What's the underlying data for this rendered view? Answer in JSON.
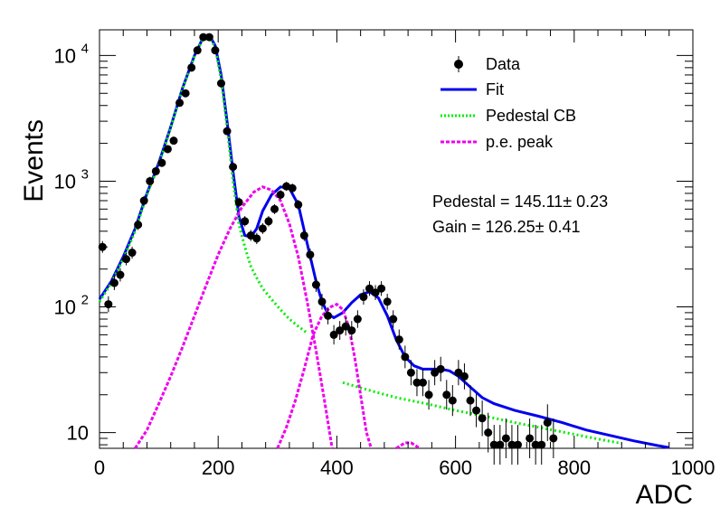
{
  "chart_data": {
    "type": "scatter",
    "xlabel": "ADC",
    "ylabel": "Events",
    "xlim": [
      0,
      1000
    ],
    "ylim": [
      7.5,
      16000
    ],
    "yscale": "log",
    "x_ticks": [
      "0",
      "200",
      "400",
      "600",
      "800",
      "1000"
    ],
    "y_ticks": [
      {
        "value": 10,
        "label": "10"
      },
      {
        "value": 100,
        "label": "10",
        "exponent": "2"
      },
      {
        "value": 1000,
        "label": "10",
        "exponent": "3"
      },
      {
        "value": 10000,
        "label": "10",
        "exponent": "4"
      }
    ],
    "grid": false,
    "legend_position": "top-right",
    "legend": [
      {
        "label": "Data",
        "style": "marker",
        "color": "#000000"
      },
      {
        "label": "Fit",
        "style": "solid",
        "color": "#0000ee"
      },
      {
        "label": "Pedestal CB",
        "style": "dotted",
        "color": "#00ee00"
      },
      {
        "label": "p.e. peak",
        "style": "dashed",
        "color": "#ee00ee"
      }
    ],
    "annotations": [
      {
        "text": "Pedestal = 145.11± 0.23"
      },
      {
        "text": "Gain = 126.25± 0.41"
      }
    ],
    "series": [
      {
        "name": "Data",
        "kind": "points",
        "color": "#000000",
        "points": [
          [
            5,
            300
          ],
          [
            15,
            105
          ],
          [
            25,
            155
          ],
          [
            35,
            180
          ],
          [
            45,
            240
          ],
          [
            55,
            270
          ],
          [
            65,
            450
          ],
          [
            75,
            700
          ],
          [
            85,
            1000
          ],
          [
            95,
            1200
          ],
          [
            105,
            1400
          ],
          [
            115,
            1800
          ],
          [
            125,
            2100
          ],
          [
            135,
            4200
          ],
          [
            145,
            5000
          ],
          [
            155,
            8000
          ],
          [
            165,
            11000
          ],
          [
            175,
            14000
          ],
          [
            185,
            14000
          ],
          [
            195,
            11000
          ],
          [
            205,
            6000
          ],
          [
            215,
            2500
          ],
          [
            225,
            1300
          ],
          [
            235,
            680
          ],
          [
            245,
            480
          ],
          [
            255,
            370
          ],
          [
            265,
            350
          ],
          [
            275,
            420
          ],
          [
            285,
            480
          ],
          [
            295,
            600
          ],
          [
            305,
            780
          ],
          [
            315,
            910
          ],
          [
            325,
            880
          ],
          [
            335,
            650
          ],
          [
            345,
            370
          ],
          [
            355,
            260
          ],
          [
            365,
            150
          ],
          [
            375,
            110
          ],
          [
            385,
            85
          ],
          [
            395,
            60
          ],
          [
            405,
            65
          ],
          [
            415,
            70
          ],
          [
            425,
            65
          ],
          [
            435,
            80
          ],
          [
            445,
            120
          ],
          [
            455,
            140
          ],
          [
            465,
            130
          ],
          [
            475,
            140
          ],
          [
            485,
            110
          ],
          [
            495,
            80
          ],
          [
            505,
            55
          ],
          [
            515,
            40
          ],
          [
            525,
            30
          ],
          [
            535,
            25
          ],
          [
            545,
            25
          ],
          [
            555,
            20
          ],
          [
            565,
            30
          ],
          [
            575,
            32
          ],
          [
            585,
            20
          ],
          [
            595,
            18
          ],
          [
            605,
            30
          ],
          [
            615,
            28
          ],
          [
            625,
            18
          ],
          [
            635,
            15
          ],
          [
            645,
            13
          ],
          [
            655,
            10
          ],
          [
            665,
            8
          ],
          [
            675,
            8
          ],
          [
            685,
            9
          ],
          [
            695,
            8
          ],
          [
            705,
            8
          ],
          [
            725,
            9
          ],
          [
            735,
            8
          ],
          [
            745,
            8
          ],
          [
            755,
            12
          ],
          [
            765,
            9
          ]
        ]
      },
      {
        "name": "Fit",
        "kind": "line",
        "color": "#0000ee",
        "points": [
          [
            0,
            115
          ],
          [
            20,
            160
          ],
          [
            40,
            250
          ],
          [
            60,
            420
          ],
          [
            80,
            800
          ],
          [
            100,
            1400
          ],
          [
            120,
            2700
          ],
          [
            140,
            5500
          ],
          [
            160,
            10000
          ],
          [
            175,
            14000
          ],
          [
            185,
            14500
          ],
          [
            195,
            12000
          ],
          [
            205,
            7000
          ],
          [
            215,
            3000
          ],
          [
            225,
            1200
          ],
          [
            235,
            520
          ],
          [
            245,
            370
          ],
          [
            255,
            360
          ],
          [
            265,
            420
          ],
          [
            275,
            580
          ],
          [
            290,
            780
          ],
          [
            305,
            900
          ],
          [
            320,
            880
          ],
          [
            335,
            650
          ],
          [
            350,
            320
          ],
          [
            365,
            160
          ],
          [
            375,
            110
          ],
          [
            385,
            88
          ],
          [
            395,
            82
          ],
          [
            410,
            90
          ],
          [
            425,
            108
          ],
          [
            440,
            125
          ],
          [
            455,
            132
          ],
          [
            470,
            118
          ],
          [
            485,
            85
          ],
          [
            500,
            55
          ],
          [
            515,
            40
          ],
          [
            530,
            34
          ],
          [
            545,
            32
          ],
          [
            560,
            32
          ],
          [
            575,
            32
          ],
          [
            590,
            31
          ],
          [
            605,
            28
          ],
          [
            625,
            23
          ],
          [
            645,
            19
          ],
          [
            665,
            17
          ],
          [
            700,
            15
          ],
          [
            740,
            13.5
          ],
          [
            780,
            12
          ],
          [
            820,
            10.5
          ],
          [
            860,
            9.5
          ],
          [
            900,
            8.6
          ],
          [
            940,
            7.9
          ],
          [
            960,
            7.6
          ]
        ]
      },
      {
        "name": "Pedestal CB",
        "kind": "line",
        "color": "#00ee00",
        "points": [
          [
            0,
            110
          ],
          [
            20,
            155
          ],
          [
            40,
            240
          ],
          [
            60,
            400
          ],
          [
            80,
            780
          ],
          [
            100,
            1350
          ],
          [
            120,
            2650
          ],
          [
            140,
            5400
          ],
          [
            160,
            9800
          ],
          [
            175,
            13800
          ],
          [
            185,
            14200
          ],
          [
            195,
            11500
          ],
          [
            205,
            6500
          ],
          [
            215,
            2700
          ],
          [
            225,
            1000
          ],
          [
            235,
            450
          ],
          [
            245,
            300
          ],
          [
            255,
            210
          ],
          [
            265,
            170
          ],
          [
            275,
            140
          ],
          [
            290,
            115
          ],
          [
            305,
            95
          ],
          [
            320,
            80
          ],
          [
            335,
            70
          ],
          [
            350,
            62
          ]
        ]
      },
      {
        "name": "Pedestal CB tail",
        "kind": "line",
        "color": "#00ee00",
        "points": [
          [
            410,
            25
          ],
          [
            450,
            22
          ],
          [
            500,
            19
          ],
          [
            550,
            17
          ],
          [
            600,
            15
          ],
          [
            650,
            13.5
          ],
          [
            700,
            12
          ],
          [
            750,
            10.8
          ],
          [
            800,
            9.7
          ],
          [
            850,
            8.7
          ],
          [
            880,
            8.2
          ]
        ]
      },
      {
        "name": "p.e. peak 1",
        "kind": "line",
        "color": "#ee00ee",
        "points": [
          [
            60,
            7.5
          ],
          [
            80,
            10.5
          ],
          [
            100,
            17
          ],
          [
            120,
            28
          ],
          [
            140,
            48
          ],
          [
            160,
            85
          ],
          [
            180,
            150
          ],
          [
            200,
            260
          ],
          [
            220,
            420
          ],
          [
            240,
            620
          ],
          [
            260,
            820
          ],
          [
            275,
            900
          ],
          [
            290,
            850
          ],
          [
            305,
            700
          ],
          [
            320,
            460
          ],
          [
            335,
            250
          ],
          [
            350,
            110
          ],
          [
            365,
            45
          ],
          [
            380,
            17
          ],
          [
            392,
            7.5
          ]
        ]
      },
      {
        "name": "p.e. peak 2",
        "kind": "line",
        "color": "#ee00ee",
        "points": [
          [
            300,
            7.5
          ],
          [
            315,
            11
          ],
          [
            330,
            18
          ],
          [
            345,
            32
          ],
          [
            360,
            60
          ],
          [
            375,
            85
          ],
          [
            390,
            100
          ],
          [
            400,
            105
          ],
          [
            410,
            95
          ],
          [
            420,
            70
          ],
          [
            430,
            40
          ],
          [
            440,
            20
          ],
          [
            450,
            10
          ],
          [
            458,
            7.5
          ]
        ]
      },
      {
        "name": "p.e. peak 3",
        "kind": "line",
        "color": "#ee00ee",
        "points": [
          [
            500,
            7.5
          ],
          [
            515,
            8.3
          ],
          [
            525,
            8.3
          ],
          [
            540,
            7.5
          ]
        ]
      }
    ]
  }
}
